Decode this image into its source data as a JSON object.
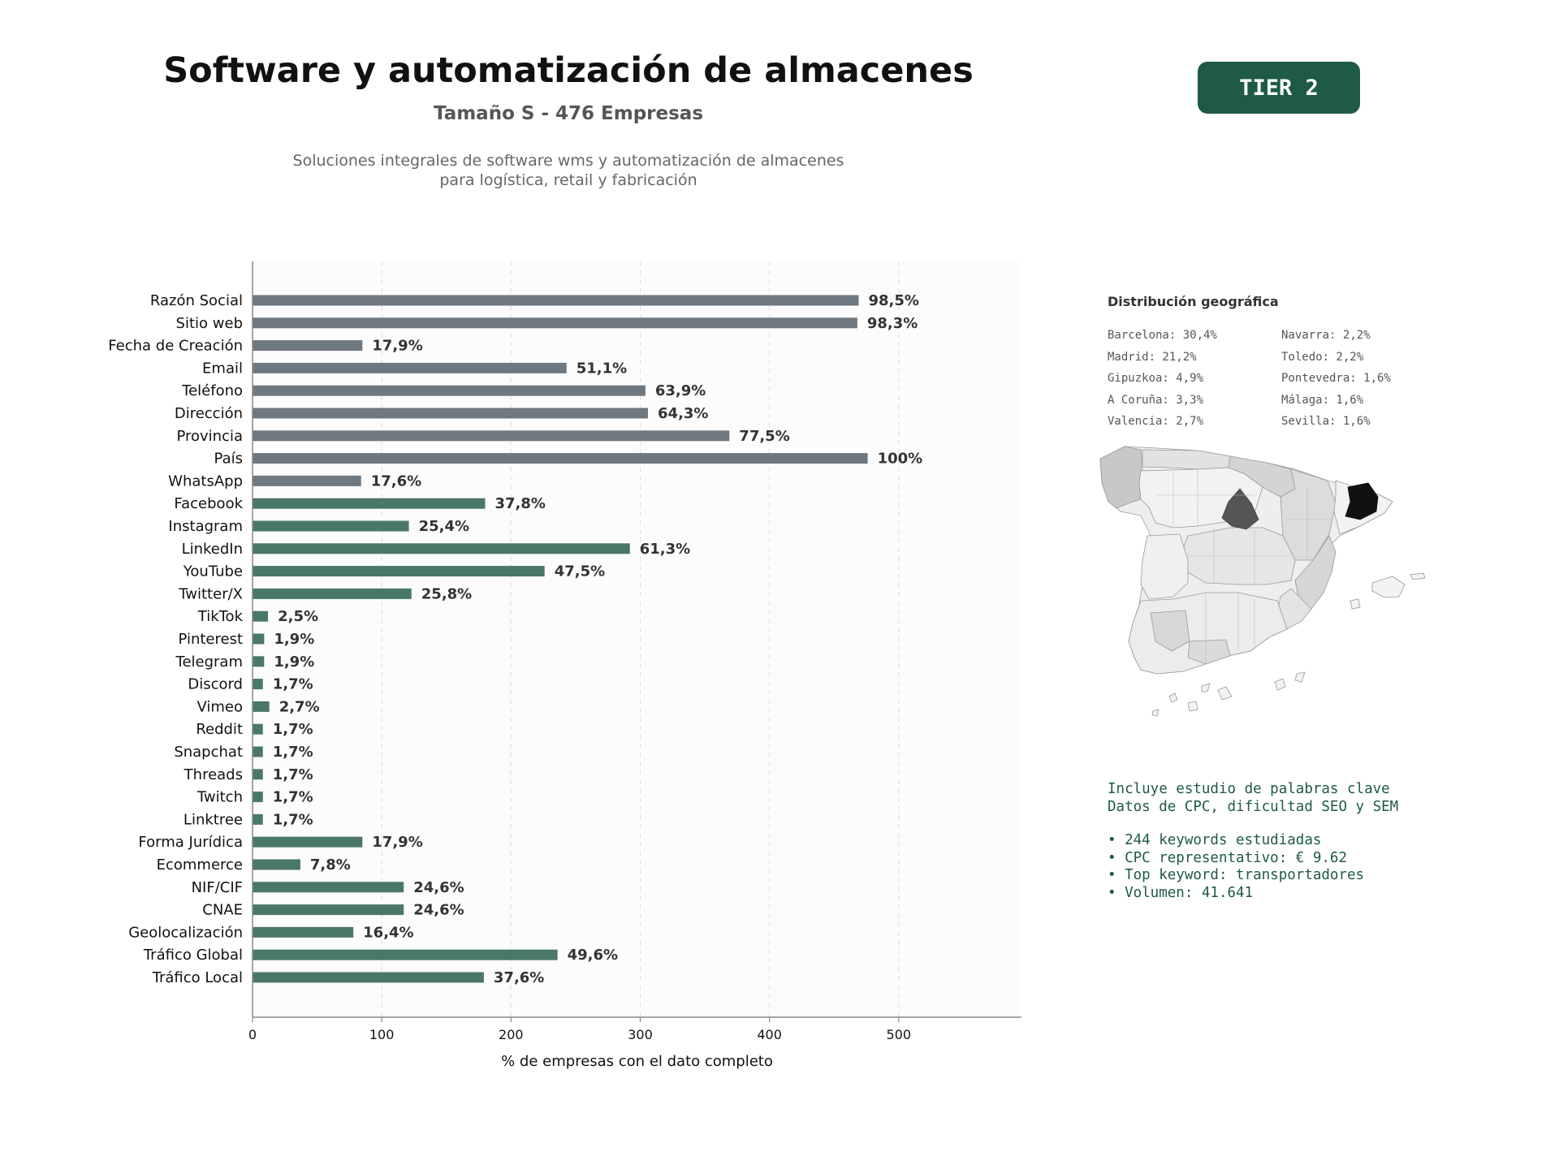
{
  "header": {
    "title": "Software y automatización de almacenes",
    "subtitle": "Tamaño S - 476 Empresas",
    "description_lines": [
      "Soluciones integrales de software wms y automatización de almacenes",
      "para logística, retail y fabricación"
    ],
    "tier_label": "TIER 2"
  },
  "chart_data": {
    "type": "bar",
    "orientation": "horizontal",
    "categories": [
      "Razón Social",
      "Sitio web",
      "Fecha de Creación",
      "Email",
      "Teléfono",
      "Dirección",
      "Provincia",
      "País",
      "WhatsApp",
      "Facebook",
      "Instagram",
      "LinkedIn",
      "YouTube",
      "Twitter/X",
      "TikTok",
      "Pinterest",
      "Telegram",
      "Discord",
      "Vimeo",
      "Reddit",
      "Snapchat",
      "Threads",
      "Twitch",
      "Linktree",
      "Forma Jurídica",
      "Ecommerce",
      "NIF/CIF",
      "CNAE",
      "Geolocalización",
      "Tráfico Global",
      "Tráfico Local"
    ],
    "values": [
      469,
      468,
      85,
      243,
      304,
      306,
      369,
      476,
      84,
      180,
      121,
      292,
      226,
      123,
      12,
      9,
      9,
      8,
      13,
      8,
      8,
      8,
      8,
      8,
      85,
      37,
      117,
      117,
      78,
      236,
      179
    ],
    "labels": [
      "98,5%",
      "98,3%",
      "17,9%",
      "51,1%",
      "63,9%",
      "64,3%",
      "77,5%",
      "100%",
      "17,6%",
      "37,8%",
      "25,4%",
      "61,3%",
      "47,5%",
      "25,8%",
      "2,5%",
      "1,9%",
      "1,9%",
      "1,7%",
      "2,7%",
      "1,7%",
      "1,7%",
      "1,7%",
      "1,7%",
      "1,7%",
      "17,9%",
      "7,8%",
      "24,6%",
      "24,6%",
      "16,4%",
      "49,6%",
      "37,6%"
    ],
    "groups": [
      "gray",
      "gray",
      "gray",
      "gray",
      "gray",
      "gray",
      "gray",
      "gray",
      "gray",
      "green",
      "green",
      "green",
      "green",
      "green",
      "green",
      "green",
      "green",
      "green",
      "green",
      "green",
      "green",
      "green",
      "green",
      "green",
      "green",
      "green",
      "green",
      "green",
      "green",
      "green",
      "green"
    ],
    "colors": {
      "gray": "#6e7881",
      "green": "#4a7866"
    },
    "xlabel": "% de empresas con el dato completo",
    "xlim": [
      0,
      595
    ],
    "xticks": [
      0,
      100,
      200,
      300,
      400,
      500
    ],
    "grid": "vertical-dashed"
  },
  "geo": {
    "title": "Distribución geográfica",
    "left": [
      "Barcelona: 30,4%",
      "Madrid: 21,2%",
      "Gipuzkoa: 4,9%",
      "A Coruña: 3,3%",
      "Valencia: 2,7%"
    ],
    "right": [
      "Navarra: 2,2%",
      "Toledo: 2,2%",
      "Pontevedra: 1,6%",
      "Málaga: 1,6%",
      "Sevilla: 1,6%"
    ]
  },
  "keywords": {
    "lines": [
      "Incluye estudio de palabras clave",
      "Datos de CPC, dificultad SEO y SEM"
    ],
    "bullets": [
      "• 244 keywords estudiadas",
      "• CPC representativo: € 9.62",
      "• Top keyword: transportadores",
      "• Volumen: 41.641"
    ]
  }
}
